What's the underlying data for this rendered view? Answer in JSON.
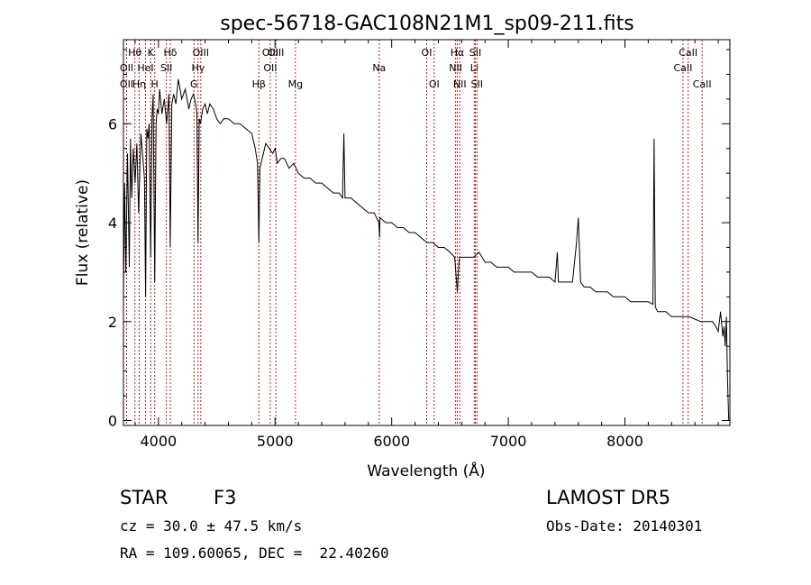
{
  "chart_data": {
    "type": "line",
    "title": "spec-56718-GAC108N21M1_sp09-211.fits",
    "xlabel": "Wavelength (Å)",
    "ylabel": "Flux (relative)",
    "xlim": [
      3700,
      8900
    ],
    "ylim": [
      -0.1,
      7.7
    ],
    "xticks": [
      4000,
      5000,
      6000,
      7000,
      8000
    ],
    "yticks": [
      0,
      2,
      4,
      6
    ],
    "grid": false,
    "series": [
      {
        "x": [
          3700,
          3710,
          3720,
          3735,
          3750,
          3760,
          3770,
          3785,
          3800,
          3815,
          3830,
          3850,
          3870,
          3880,
          3890,
          3900,
          3910,
          3920,
          3933,
          3945,
          3955,
          3968,
          3980,
          3990,
          4000,
          4010,
          4030,
          4050,
          4070,
          4090,
          4101,
          4115,
          4130,
          4150,
          4170,
          4200,
          4230,
          4260,
          4280,
          4300,
          4320,
          4330,
          4340,
          4350,
          4360,
          4380,
          4400,
          4420,
          4440,
          4470,
          4500,
          4530,
          4560,
          4600,
          4650,
          4700,
          4750,
          4800,
          4830,
          4850,
          4861,
          4870,
          4890,
          4920,
          4950,
          4980,
          5000,
          5020,
          5050,
          5080,
          5120,
          5160,
          5200,
          5250,
          5300,
          5350,
          5400,
          5450,
          5500,
          5550,
          5578,
          5590,
          5600,
          5650,
          5700,
          5750,
          5800,
          5850,
          5890,
          5896,
          5900,
          5950,
          6000,
          6050,
          6100,
          6150,
          6200,
          6250,
          6300,
          6350,
          6400,
          6450,
          6500,
          6540,
          6563,
          6580,
          6600,
          6650,
          6700,
          6750,
          6800,
          6850,
          6900,
          6950,
          7000,
          7050,
          7100,
          7150,
          7200,
          7250,
          7300,
          7350,
          7400,
          7420,
          7430,
          7450,
          7500,
          7550,
          7585,
          7600,
          7620,
          7650,
          7700,
          7750,
          7800,
          7850,
          7900,
          7950,
          8000,
          8050,
          8100,
          8150,
          8200,
          8240,
          8250,
          8260,
          8280,
          8300,
          8350,
          8400,
          8450,
          8500,
          8550,
          8600,
          8650,
          8700,
          8750,
          8780,
          8800,
          8820,
          8840,
          8850,
          8860,
          8870,
          8880,
          8890
        ],
        "values": [
          2.5,
          4.8,
          3.0,
          5.4,
          3.1,
          5.7,
          4.5,
          5.5,
          4.8,
          5.6,
          4.2,
          5.8,
          5.2,
          4.9,
          2.5,
          5.9,
          5.7,
          6.0,
          3.3,
          6.1,
          6.6,
          2.8,
          6.0,
          6.3,
          6.2,
          6.7,
          6.2,
          6.5,
          6.0,
          6.6,
          3.5,
          6.4,
          6.6,
          6.4,
          6.9,
          6.5,
          6.7,
          6.3,
          6.5,
          6.6,
          6.4,
          6.2,
          3.6,
          6.1,
          6.0,
          6.3,
          6.4,
          6.2,
          6.4,
          6.3,
          6.1,
          6.0,
          6.1,
          6.1,
          6.0,
          6.0,
          5.9,
          5.8,
          5.5,
          5.2,
          3.6,
          5.1,
          5.3,
          5.6,
          5.5,
          5.4,
          5.5,
          5.2,
          5.3,
          5.3,
          5.1,
          5.2,
          5.0,
          4.9,
          4.9,
          4.8,
          4.8,
          4.7,
          4.6,
          4.6,
          4.5,
          5.8,
          4.5,
          4.5,
          4.4,
          4.3,
          4.2,
          4.2,
          4.0,
          3.7,
          4.1,
          4.0,
          4.0,
          3.9,
          3.9,
          3.8,
          3.8,
          3.7,
          3.6,
          3.6,
          3.5,
          3.5,
          3.4,
          3.3,
          2.6,
          3.3,
          3.3,
          3.3,
          3.3,
          3.4,
          3.2,
          3.2,
          3.1,
          3.1,
          3.1,
          3.0,
          3.0,
          3.0,
          3.0,
          2.9,
          2.9,
          2.9,
          2.8,
          3.4,
          2.8,
          2.8,
          2.8,
          2.8,
          3.6,
          4.1,
          2.8,
          2.7,
          2.7,
          2.6,
          2.6,
          2.6,
          2.5,
          2.5,
          2.5,
          2.4,
          2.4,
          2.4,
          2.4,
          2.35,
          5.7,
          2.3,
          2.2,
          2.2,
          2.2,
          2.1,
          2.1,
          2.1,
          2.1,
          2.05,
          2.0,
          2.0,
          2.0,
          1.9,
          1.8,
          2.2,
          1.7,
          1.9,
          1.5,
          2.1,
          0.8,
          0.0
        ]
      }
    ],
    "line_markers": [
      {
        "label": "Hθ",
        "x": 3798,
        "row": 1
      },
      {
        "label": "OII",
        "x": 3727,
        "row": 2
      },
      {
        "label": "OII",
        "x": 3727,
        "row": 3
      },
      {
        "label": "Hη",
        "x": 3835,
        "row": 3
      },
      {
        "label": "HeI",
        "x": 3889,
        "row": 2
      },
      {
        "label": "K",
        "x": 3934,
        "row": 1
      },
      {
        "label": "H",
        "x": 3968,
        "row": 3
      },
      {
        "label": "Hδ",
        "x": 4102,
        "row": 1
      },
      {
        "label": "SII",
        "x": 4068,
        "row": 2
      },
      {
        "label": "OIII",
        "x": 4363,
        "row": 1
      },
      {
        "label": "Hγ",
        "x": 4340,
        "row": 2
      },
      {
        "label": "G",
        "x": 4305,
        "row": 3
      },
      {
        "label": "OIII",
        "x": 4959,
        "row": 1
      },
      {
        "label": "OIII",
        "x": 5007,
        "row": 1
      },
      {
        "label": "OII",
        "x": 4959,
        "row": 2
      },
      {
        "label": "Hβ",
        "x": 4861,
        "row": 3
      },
      {
        "label": "Mg",
        "x": 5175,
        "row": 3
      },
      {
        "label": "Na",
        "x": 5893,
        "row": 2
      },
      {
        "label": "OI",
        "x": 6300,
        "row": 1
      },
      {
        "label": "OI",
        "x": 6364,
        "row": 3
      },
      {
        "label": "Hα",
        "x": 6563,
        "row": 1
      },
      {
        "label": "NII",
        "x": 6548,
        "row": 2
      },
      {
        "label": "NII",
        "x": 6584,
        "row": 3
      },
      {
        "label": "SII",
        "x": 6717,
        "row": 1
      },
      {
        "label": "Li",
        "x": 6708,
        "row": 2
      },
      {
        "label": "SII",
        "x": 6731,
        "row": 3
      },
      {
        "label": "CaII",
        "x": 8542,
        "row": 1
      },
      {
        "label": "CaII",
        "x": 8498,
        "row": 2
      },
      {
        "label": "CaII",
        "x": 8662,
        "row": 3
      }
    ]
  },
  "info": {
    "object_class": "STAR",
    "subclass": "F3",
    "survey": "LAMOST DR5",
    "velocity": "cz = 30.0 ± 47.5 km/s",
    "obs_date": "Obs-Date: 20140301",
    "coords": "RA = 109.60065, DEC =  22.40260"
  },
  "colors": {
    "spectrum": "#000000",
    "marker_line": "#b22222",
    "axes": "#000000"
  }
}
